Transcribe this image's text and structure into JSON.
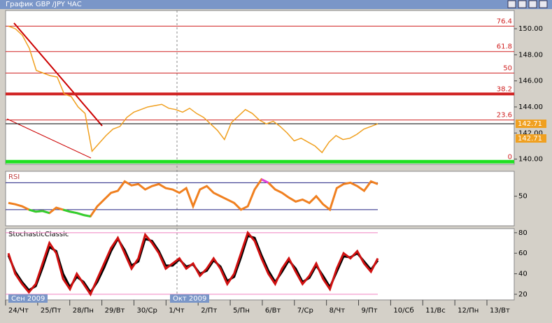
{
  "window_title": "График GBP /JPY  ЧАС",
  "time_axis": {
    "labels": [
      "24/Чт",
      "25/Пт",
      "28/Пн",
      "29/Вт",
      "30/Ср",
      "1/Чт",
      "2/Пт",
      "5/Пн",
      "6/Вт",
      "7/Ср",
      "8/Чт",
      "9/Пт",
      "10/Сб",
      "11/Вс",
      "12/Пн",
      "13/Вт"
    ],
    "months": [
      "Сен 2009",
      "Окт 2009"
    ]
  },
  "chart_data": [
    {
      "type": "line",
      "ylim": [
        139.6,
        151.4
      ],
      "yticks": [
        {
          "value": 140,
          "label": "140.00"
        },
        {
          "value": 142,
          "label": "142.00"
        },
        {
          "value": 144,
          "label": "144.00"
        },
        {
          "value": 146,
          "label": "146.00"
        },
        {
          "value": 148,
          "label": "148.00"
        },
        {
          "value": 150,
          "label": "150.00"
        }
      ],
      "series": [
        {
          "color": "#f0a020",
          "values": [
            150.2,
            150.0,
            149.5,
            148.5,
            146.8,
            146.6,
            146.4,
            146.3,
            145.0,
            144.8,
            144.0,
            143.5,
            140.6,
            141.2,
            141.8,
            142.3,
            142.5,
            143.2,
            143.6,
            143.8,
            144.0,
            144.1,
            144.2,
            143.9,
            143.8,
            143.6,
            143.9,
            143.5,
            143.2,
            142.7,
            142.2,
            141.5,
            142.8,
            143.3,
            143.8,
            143.5,
            143.0,
            142.7,
            142.9,
            142.5,
            142.0,
            141.4,
            141.6,
            141.3,
            141.0,
            140.5,
            141.3,
            141.8,
            141.5,
            141.6,
            141.9,
            142.3,
            142.5,
            142.71
          ]
        }
      ],
      "fib_levels": [
        {
          "price": 150.2,
          "ratio": 76.4
        },
        {
          "price": 148.25,
          "ratio": 61.8
        },
        {
          "price": 146.6,
          "ratio": 50
        },
        {
          "price": 145.0,
          "ratio": 38.2
        },
        {
          "price": 143.0,
          "ratio": 23.6
        },
        {
          "price": 139.8,
          "ratio": 0
        }
      ],
      "fib_color": "#d02020",
      "zero_color": "#20e020",
      "current_price": 142.71,
      "price_label_color": "#f0a020"
    },
    {
      "type": "line",
      "label": "RSI",
      "ylim": [
        6,
        87
      ],
      "yticks": [
        50
      ],
      "levels": [
        70,
        30
      ],
      "level_color": "#202080",
      "series": [
        {
          "color": "#f08020",
          "high_color": "#e040e0",
          "low_color": "#30d030",
          "values": [
            40,
            38,
            35,
            30,
            27,
            28,
            25,
            33,
            30,
            27,
            25,
            22,
            20,
            35,
            45,
            55,
            58,
            72,
            66,
            68,
            60,
            65,
            68,
            62,
            60,
            55,
            62,
            35,
            60,
            65,
            55,
            50,
            45,
            40,
            30,
            35,
            60,
            75,
            70,
            60,
            55,
            48,
            42,
            45,
            40,
            50,
            38,
            30,
            62,
            68,
            70,
            65,
            58,
            72,
            68
          ]
        }
      ]
    },
    {
      "type": "line",
      "label": "StochasticClassic",
      "ylim": [
        14.5,
        84
      ],
      "yticks": [
        20,
        40,
        60,
        80
      ],
      "levels": [
        80,
        20
      ],
      "level_color": "#f080c0",
      "series": [
        {
          "color": "#000000",
          "values": [
            58,
            42,
            32,
            24,
            28,
            46,
            66,
            62,
            40,
            27,
            37,
            32,
            22,
            32,
            46,
            62,
            74,
            63,
            48,
            52,
            74,
            72,
            62,
            48,
            48,
            54,
            47,
            49,
            40,
            43,
            53,
            47,
            33,
            37,
            56,
            77,
            75,
            58,
            43,
            32,
            42,
            53,
            45,
            32,
            36,
            48,
            38,
            27,
            42,
            57,
            56,
            60,
            52,
            44,
            53
          ]
        },
        {
          "color": "#d01010",
          "values": [
            60,
            40,
            30,
            22,
            30,
            50,
            70,
            60,
            35,
            25,
            40,
            30,
            20,
            35,
            50,
            65,
            75,
            60,
            45,
            55,
            78,
            70,
            60,
            45,
            50,
            55,
            45,
            50,
            38,
            45,
            55,
            45,
            30,
            40,
            60,
            80,
            72,
            55,
            40,
            30,
            45,
            55,
            42,
            30,
            38,
            50,
            35,
            25,
            45,
            60,
            55,
            62,
            50,
            42,
            55
          ]
        }
      ]
    }
  ]
}
